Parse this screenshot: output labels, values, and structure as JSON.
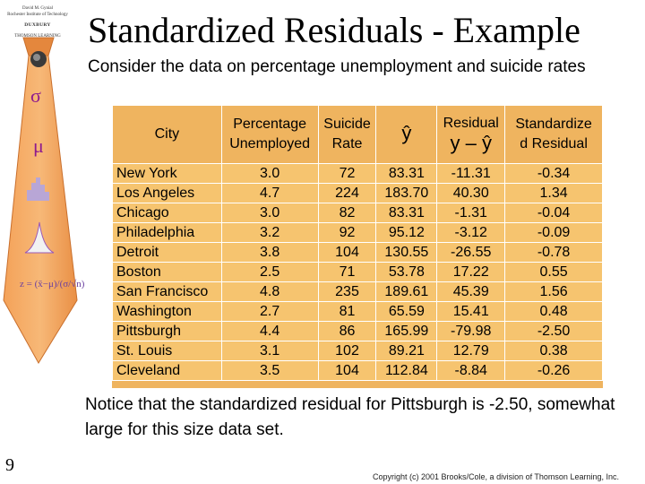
{
  "title": "Standardized Residuals - Example",
  "intro": "Consider the data on percentage unemployment and suicide rates",
  "notice": "Notice that the standardized residual for Pittsburgh is -2.50, somewhat large for this size data set.",
  "page_number": "9",
  "copyright": "Copyright (c) 2001 Brooks/Cole, a division of Thomson Learning, Inc.",
  "tie": {
    "author_line1": "David M. Gynial",
    "author_line2": "Rochester Institute of Technology",
    "publisher": "DUXBURY",
    "imprint": "THOMSON LEARNING",
    "sigma": "σ",
    "mu": "μ"
  },
  "table": {
    "headers": {
      "city": "City",
      "pct_line1": "Percentage",
      "pct_line2": "Unemployed",
      "rate_line1": "Suicide",
      "rate_line2": "Rate",
      "yhat": "ŷ",
      "resid_line1": "Residual",
      "resid_line2": "y – ŷ",
      "std_line1": "Standardize",
      "std_line2": "d Residual"
    },
    "rows": [
      {
        "city": "New York",
        "pct": "3.0",
        "rate": "72",
        "yhat": "83.31",
        "resid": "-11.31",
        "std": "-0.34"
      },
      {
        "city": "Los Angeles",
        "pct": "4.7",
        "rate": "224",
        "yhat": "183.70",
        "resid": "40.30",
        "std": "1.34"
      },
      {
        "city": "Chicago",
        "pct": "3.0",
        "rate": "82",
        "yhat": "83.31",
        "resid": "-1.31",
        "std": "-0.04"
      },
      {
        "city": "Philadelphia",
        "pct": "3.2",
        "rate": "92",
        "yhat": "95.12",
        "resid": "-3.12",
        "std": "-0.09"
      },
      {
        "city": "Detroit",
        "pct": "3.8",
        "rate": "104",
        "yhat": "130.55",
        "resid": "-26.55",
        "std": "-0.78"
      },
      {
        "city": "Boston",
        "pct": "2.5",
        "rate": "71",
        "yhat": "53.78",
        "resid": "17.22",
        "std": "0.55"
      },
      {
        "city": "San Francisco",
        "pct": "4.8",
        "rate": "235",
        "yhat": "189.61",
        "resid": "45.39",
        "std": "1.56"
      },
      {
        "city": "Washington",
        "pct": "2.7",
        "rate": "81",
        "yhat": "65.59",
        "resid": "15.41",
        "std": "0.48"
      },
      {
        "city": "Pittsburgh",
        "pct": "4.4",
        "rate": "86",
        "yhat": "165.99",
        "resid": "-79.98",
        "std": "-2.50"
      },
      {
        "city": "St. Louis",
        "pct": "3.1",
        "rate": "102",
        "yhat": "89.21",
        "resid": "12.79",
        "std": "0.38"
      },
      {
        "city": "Cleveland",
        "pct": "3.5",
        "rate": "104",
        "yhat": "112.84",
        "resid": "-8.84",
        "std": "-0.26"
      }
    ]
  }
}
